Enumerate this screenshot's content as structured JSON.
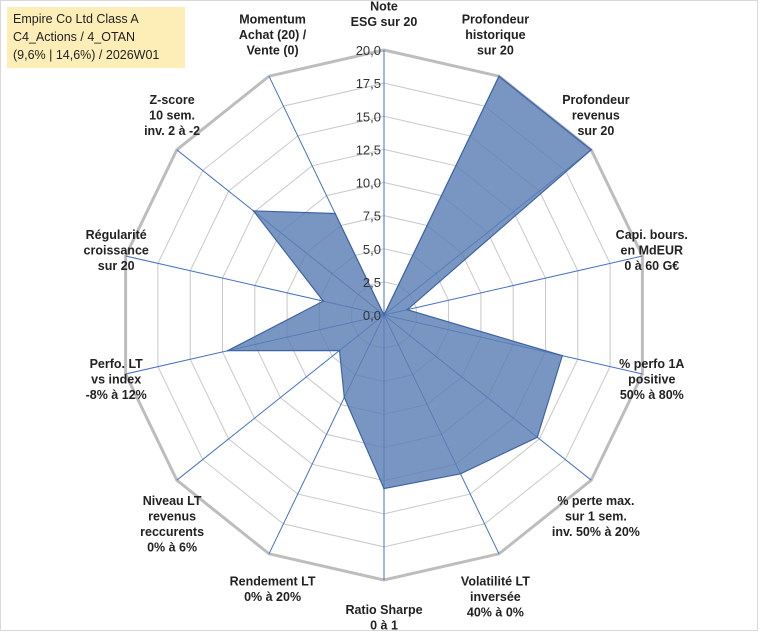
{
  "chart_data": {
    "type": "radar",
    "title_lines": [
      "Empire Co Ltd Class A",
      "C4_Actions / 4_OTAN",
      "(9,6% | 14,6%) / 2026W01"
    ],
    "rmin": 0,
    "rmax": 20,
    "ticks": [
      "0,0",
      "2,5",
      "5,0",
      "7,5",
      "10,0",
      "12,5",
      "15,0",
      "17,5",
      "20,0"
    ],
    "axes": [
      {
        "lines": [
          "Note",
          "ESG sur 20"
        ]
      },
      {
        "lines": [
          "Profondeur",
          "historique",
          "sur 20"
        ]
      },
      {
        "lines": [
          "Profondeur",
          "revenus",
          "sur 20"
        ]
      },
      {
        "lines": [
          "Capi. bours.",
          "en MdEUR",
          "0 à 60 G€"
        ]
      },
      {
        "lines": [
          "% perfo 1A",
          "positive",
          "50% à 80%"
        ]
      },
      {
        "lines": [
          "% perte max.",
          "sur 1 sem.",
          "inv. 50% à 20%"
        ]
      },
      {
        "lines": [
          "Volatilité LT",
          "inversée",
          "40% à 0%"
        ]
      },
      {
        "lines": [
          "Ratio Sharpe",
          "0 à 1"
        ]
      },
      {
        "lines": [
          "Rendement LT",
          "0% à 20%"
        ]
      },
      {
        "lines": [
          "Niveau LT",
          "revenus",
          "reccurents",
          "0% à 6%"
        ]
      },
      {
        "lines": [
          "Perfo. LT",
          "vs index",
          "-8% à 12%"
        ]
      },
      {
        "lines": [
          "Régularité",
          "croissance",
          "sur 20"
        ]
      },
      {
        "lines": [
          "Z-score",
          "10 sem.",
          "inv. 2 à -2"
        ]
      },
      {
        "lines": [
          "Momentum",
          "Achat (20) /",
          "Vente (0)"
        ]
      }
    ],
    "series": [
      {
        "name": "Empire Co Ltd Class A",
        "values": [
          0,
          20,
          20,
          1.8,
          13.8,
          14.8,
          13.3,
          13.1,
          6.9,
          4.3,
          12.1,
          4.7,
          12.6,
          8.5
        ]
      }
    ],
    "colors": {
      "fill": "#5b7fb5",
      "stroke": "#3e64a6",
      "spoke": "#4472c4",
      "grid": "#c8c8c8"
    }
  }
}
